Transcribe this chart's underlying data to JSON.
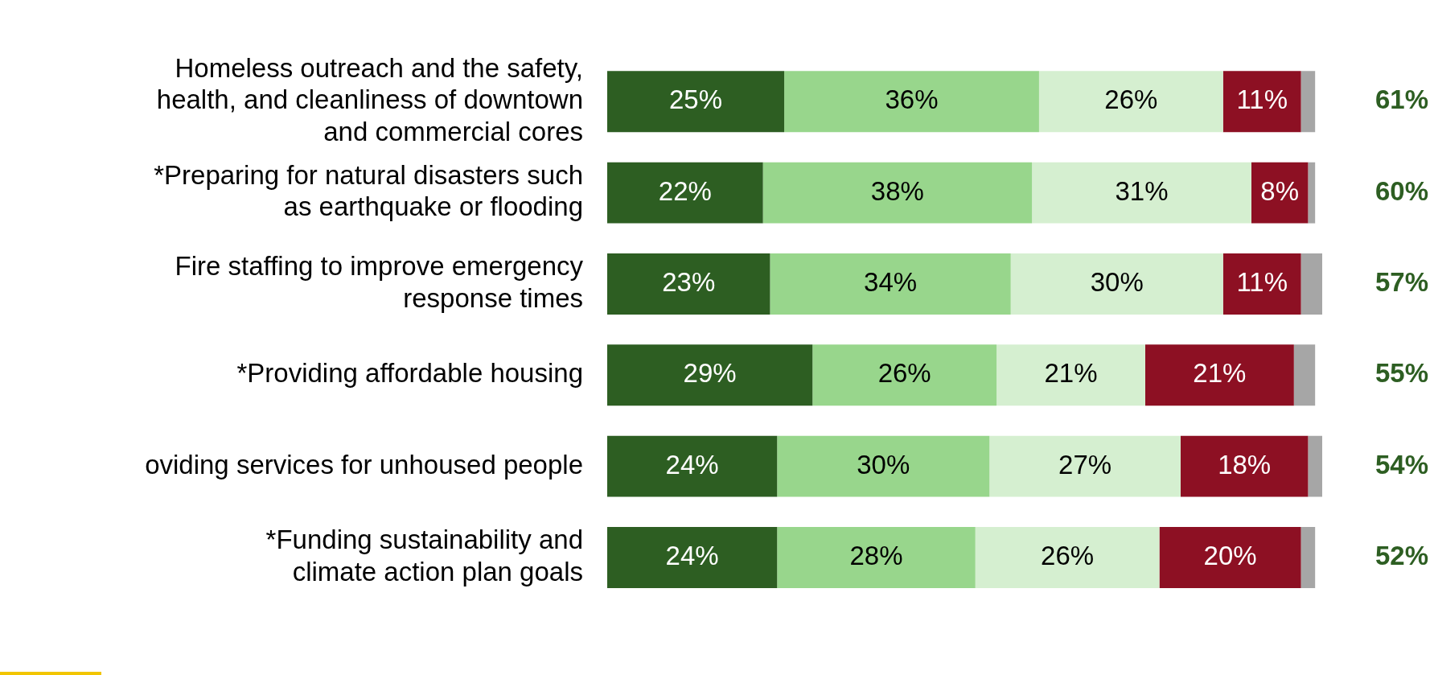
{
  "chart_data": {
    "type": "bar",
    "orientation": "horizontal",
    "stacked": true,
    "legend": false,
    "grid": false,
    "tick_labels": "y",
    "categories": [
      "Homeless outreach and the safety,\nhealth, and cleanliness of downtown\nand commercial cores",
      "*Preparing for natural disasters such\nas earthquake or flooding",
      "Fire staffing to improve emergency\nresponse times",
      "*Providing affordable housing",
      "oviding services for unhoused people",
      "*Funding sustainability and\nclimate action plan goals"
    ],
    "xlim": [
      0,
      101
    ],
    "series": [
      {
        "color": "#2d5e22",
        "values": [
          25,
          22,
          23,
          29,
          24,
          24
        ],
        "value_labels": [
          "25%",
          "22%",
          "23%",
          "29%",
          "24%",
          "24%"
        ]
      },
      {
        "color": "#98d68c",
        "values": [
          36,
          38,
          34,
          26,
          30,
          28
        ],
        "value_labels": [
          "36%",
          "38%",
          "34%",
          "26%",
          "30%",
          "28%"
        ]
      },
      {
        "color": "#d5efd0",
        "values": [
          26,
          31,
          30,
          21,
          27,
          26
        ],
        "value_labels": [
          "26%",
          "31%",
          "30%",
          "21%",
          "27%",
          "26%"
        ]
      },
      {
        "color": "#8d1023",
        "values": [
          11,
          8,
          11,
          21,
          18,
          20
        ],
        "value_labels": [
          "11%",
          "8%",
          "11%",
          "21%",
          "18%",
          "20%"
        ]
      },
      {
        "color": "#a6a6a6",
        "values": [
          2,
          1,
          3,
          3,
          2,
          2
        ],
        "value_labels": [
          null,
          null,
          null,
          null,
          null,
          null
        ]
      }
    ],
    "annotations": [
      "61%",
      "60%",
      "57%",
      "55%",
      "54%",
      "52%"
    ]
  }
}
